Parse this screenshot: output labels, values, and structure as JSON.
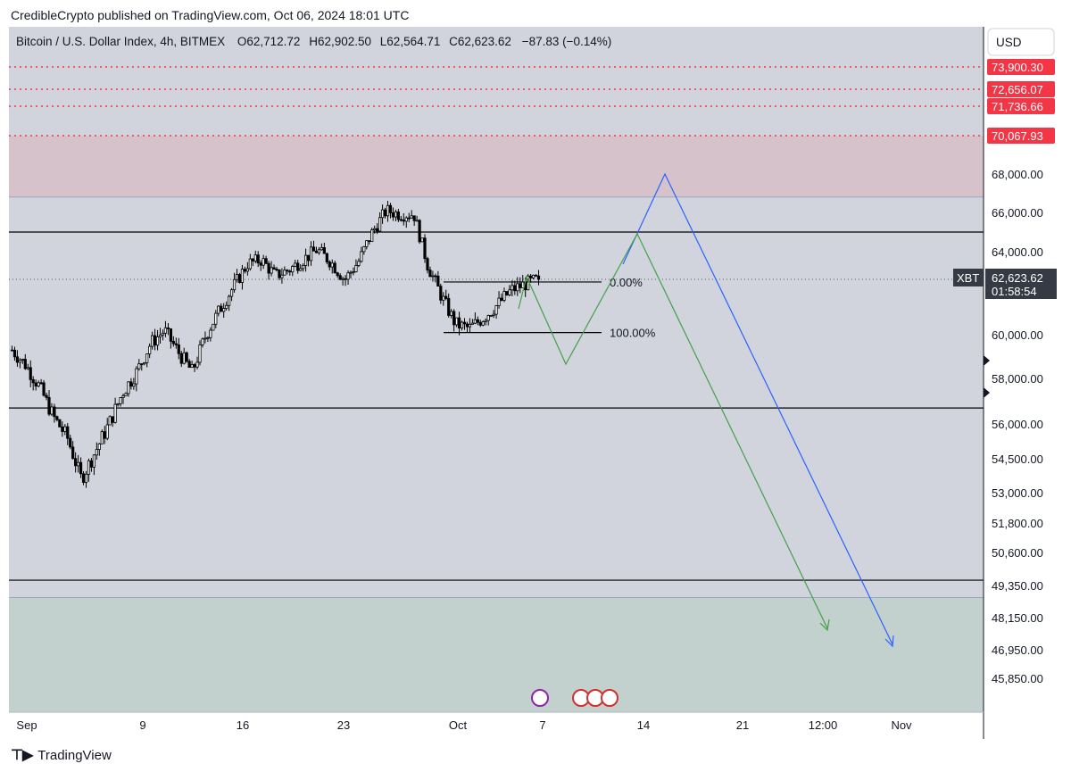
{
  "publisher_line": "CredibleCrypto published on TradingView.com, Oct 06, 2024 18:01 UTC",
  "legend": {
    "symbol": "Bitcoin / U.S. Dollar Index, 4h, BITMEX",
    "open_label": "O",
    "open": "62,712.72",
    "high_label": "H",
    "high": "62,902.50",
    "low_label": "L",
    "low": "62,564.71",
    "close_label": "C",
    "close": "62,623.62",
    "change": "−87.83 (−0.14%)"
  },
  "currency_button": "USD",
  "footer_logo": "TradingView",
  "colors": {
    "plot_bg": "#d1d4dc",
    "supply_zone": "#d5c2cb",
    "demand_zone": "#c2d1cd",
    "candles": "#000000",
    "red_level": "#f23645",
    "blue_path": "#2962ff",
    "green_path": "#43a047"
  },
  "chart_data": {
    "type": "candlestick",
    "ylim": [
      45000,
      76500
    ],
    "x_ticks": [
      "Sep",
      "9",
      "16",
      "23",
      "Oct",
      "7",
      "14",
      "21",
      "12:00",
      "Nov"
    ],
    "y_ticks": [
      "68,000.00",
      "66,000.00",
      "64,000.00",
      "60,000.00",
      "58,000.00",
      "56,000.00",
      "54,500.00",
      "53,000.00",
      "51,800.00",
      "50,600.00",
      "49,350.00",
      "48,150.00",
      "46,950.00",
      "45,850.00"
    ],
    "price_axis_values": [
      68000,
      66000,
      64000,
      60000,
      58000,
      56000,
      54500,
      53000,
      51800,
      50600,
      49350,
      48150,
      46950,
      45850
    ],
    "red_dotted_levels": [
      {
        "value": 73900.3,
        "label": "73,900.30"
      },
      {
        "value": 72656.07,
        "label": "72,656.07"
      },
      {
        "value": 71736.66,
        "label": "71,736.66"
      },
      {
        "value": 70067.93,
        "label": "70,067.93"
      }
    ],
    "supply_zone": [
      66800,
      70067.93
    ],
    "demand_zone": [
      45000,
      48900
    ],
    "horizontal_lines": [
      65000,
      56700,
      49550
    ],
    "current_price": {
      "symbol": "XBT",
      "value": 62623.62,
      "label": "62,623.62",
      "countdown": "01:58:54"
    },
    "fib": {
      "level_0_label": "0.00%",
      "level_100_label": "100.00%",
      "level_0_price": 62500,
      "level_100_price": 60100
    },
    "price_path_close": [
      59300,
      58600,
      57600,
      56300,
      55400,
      53600,
      54800,
      56000,
      57400,
      58300,
      59600,
      60200,
      59200,
      58300,
      60000,
      61200,
      62300,
      63400,
      63600,
      62800,
      63100,
      63600,
      64100,
      63500,
      62600,
      63500,
      65000,
      66100,
      65900,
      65900,
      63300,
      61800,
      60500,
      60300,
      60800,
      61400,
      62100,
      62400,
      62623.62
    ]
  }
}
